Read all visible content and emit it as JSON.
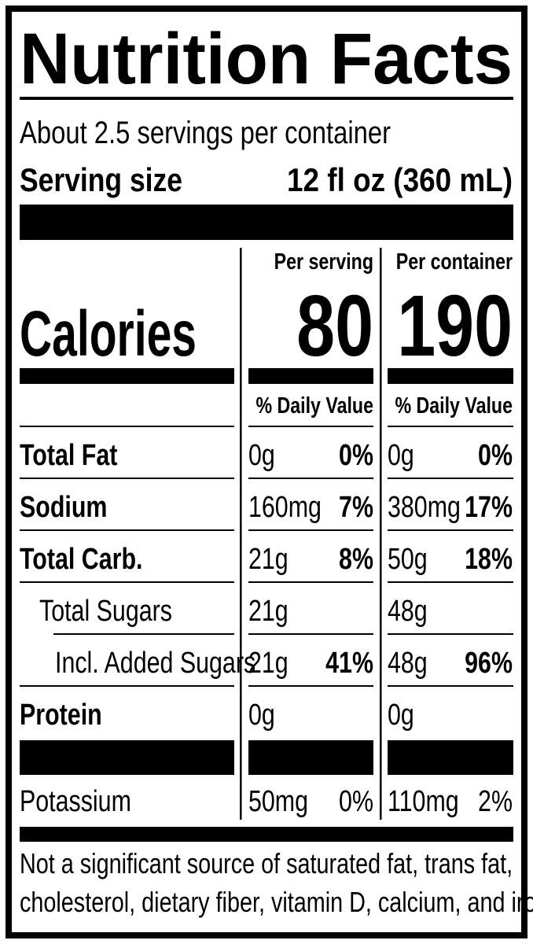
{
  "title": "Nutrition Facts",
  "servings": "About 2.5 servings per container",
  "serving_size": {
    "label": "Serving size",
    "value": "12 fl oz (360 mL)"
  },
  "calories": {
    "label": "Calories",
    "columns": [
      {
        "header": "Per serving",
        "value": "80",
        "dv_header": "% Daily Value"
      },
      {
        "header": "Per container",
        "value": "190",
        "dv_header": "% Daily Value"
      }
    ]
  },
  "nutrients": [
    {
      "name": "Total Fat",
      "per_serving": {
        "amount": "0g",
        "dv": "0%"
      },
      "per_container": {
        "amount": "0g",
        "dv": "0%"
      }
    },
    {
      "name": "Sodium",
      "per_serving": {
        "amount": "160mg",
        "dv": "7%"
      },
      "per_container": {
        "amount": "380mg",
        "dv": "17%"
      }
    },
    {
      "name": "Total Carb.",
      "per_serving": {
        "amount": "21g",
        "dv": "8%"
      },
      "per_container": {
        "amount": "50g",
        "dv": "18%"
      }
    },
    {
      "name": "Total Sugars",
      "per_serving": {
        "amount": "21g"
      },
      "per_container": {
        "amount": "48g"
      }
    },
    {
      "name": "Incl. Added Sugars",
      "per_serving": {
        "amount": "21g",
        "dv": "41%"
      },
      "per_container": {
        "amount": "48g",
        "dv": "96%"
      }
    },
    {
      "name": "Protein",
      "per_serving": {
        "amount": "0g"
      },
      "per_container": {
        "amount": "0g"
      }
    }
  ],
  "potassium": {
    "name": "Potassium",
    "per_serving": {
      "amount": "50mg",
      "dv": "0%"
    },
    "per_container": {
      "amount": "110mg",
      "dv": "2%"
    }
  },
  "footnote": [
    "Not a significant source of saturated fat, trans fat,",
    "cholesterol, dietary fiber, vitamin D, calcium, and iron."
  ]
}
